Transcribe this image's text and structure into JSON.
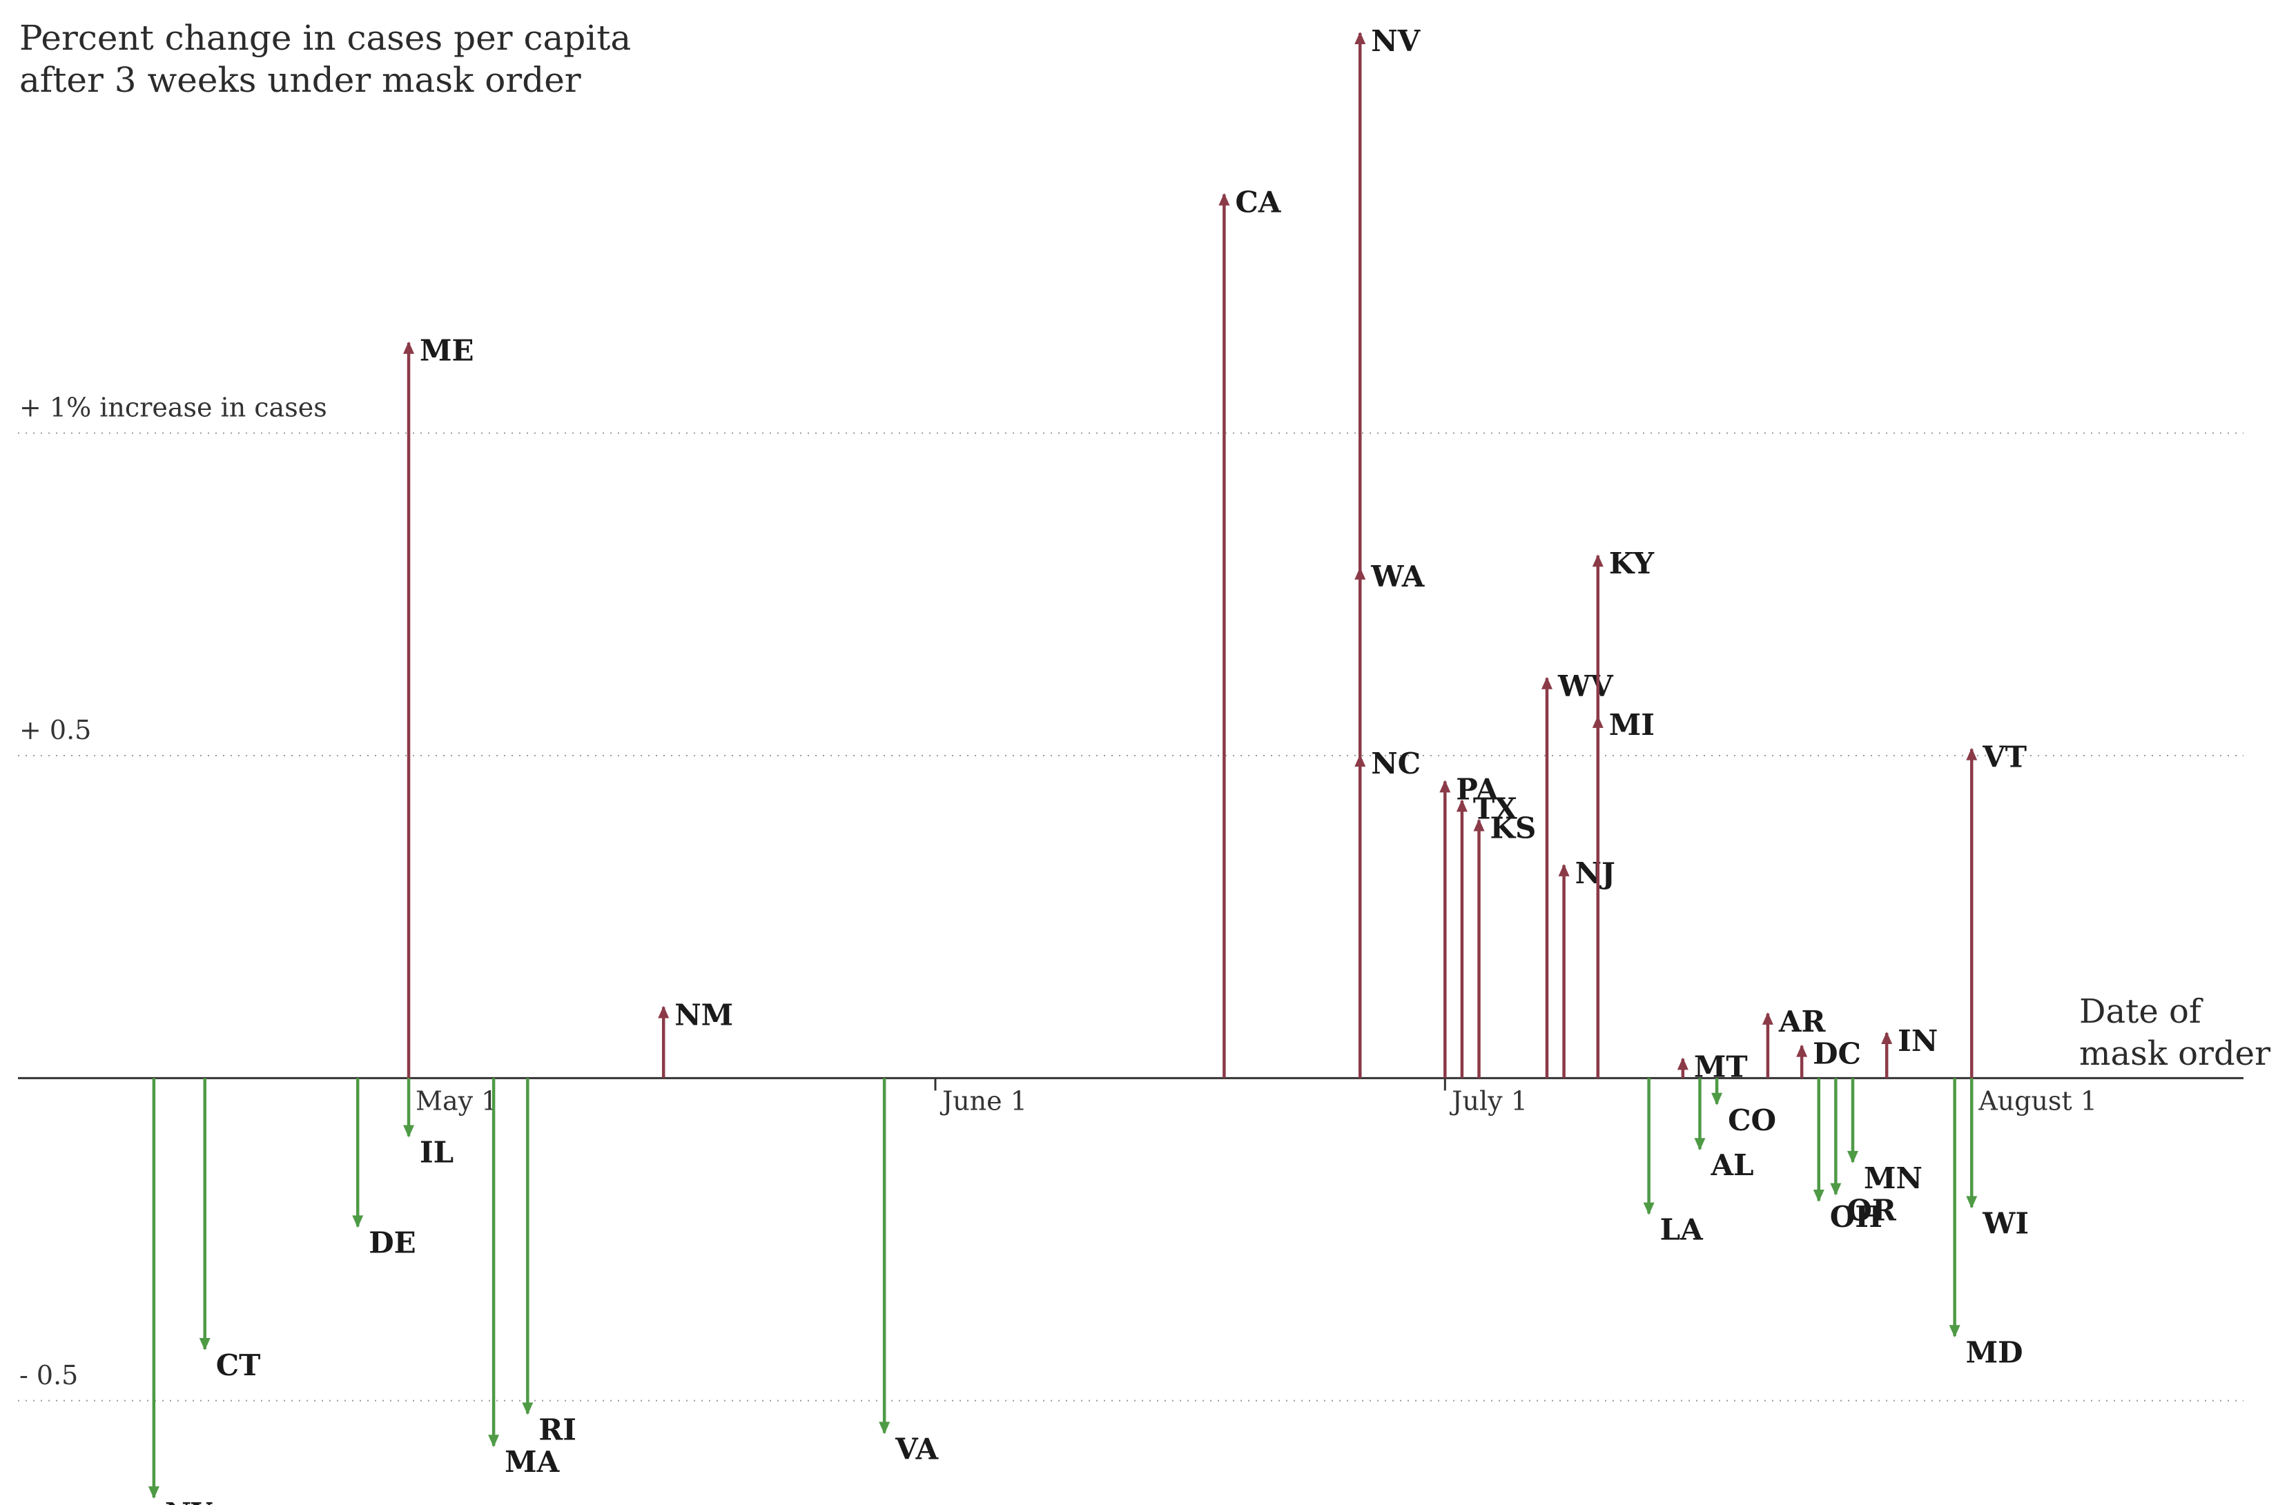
{
  "chart_data": {
    "type": "arrow",
    "title_lines": [
      "Percent change in cases per capita",
      "after 3 weeks under mask order"
    ],
    "xlabel_lines": [
      "Date of",
      "mask order"
    ],
    "x_ticks": [
      {
        "label": "May 1",
        "date": "2020-05-01"
      },
      {
        "label": "June 1",
        "date": "2020-06-01"
      },
      {
        "label": "July 1",
        "date": "2020-07-01"
      },
      {
        "label": "August 1",
        "date": "2020-08-01"
      }
    ],
    "xlim": [
      "2020-04-08",
      "2020-08-17"
    ],
    "ylim": [
      -0.65,
      1.62
    ],
    "y_gridlines": [
      {
        "value": 1,
        "label": "+ 1% increase in cases"
      },
      {
        "value": 0.5,
        "label": "+ 0.5"
      },
      {
        "value": -0.5,
        "label": "- 0.5"
      }
    ],
    "colors": {
      "increase": "#8b3a48",
      "decrease": "#4e9a45",
      "axis": "#333333",
      "grid": "#9a9a9a"
    },
    "points": [
      {
        "state": "NY",
        "date": "2020-04-16",
        "value": -0.65
      },
      {
        "state": "CT",
        "date": "2020-04-19",
        "value": -0.42
      },
      {
        "state": "DE",
        "date": "2020-04-28",
        "value": -0.23
      },
      {
        "state": "ME",
        "date": "2020-05-01",
        "value": 1.14
      },
      {
        "state": "IL",
        "date": "2020-05-01",
        "value": -0.09
      },
      {
        "state": "MA",
        "date": "2020-05-06",
        "value": -0.57
      },
      {
        "state": "RI",
        "date": "2020-05-08",
        "value": -0.52
      },
      {
        "state": "NM",
        "date": "2020-05-16",
        "value": 0.11
      },
      {
        "state": "VA",
        "date": "2020-05-29",
        "value": -0.55
      },
      {
        "state": "CA",
        "date": "2020-06-18",
        "value": 1.37
      },
      {
        "state": "NV",
        "date": "2020-06-26",
        "value": 1.62
      },
      {
        "state": "WA",
        "date": "2020-06-26",
        "value": 0.79
      },
      {
        "state": "NC",
        "date": "2020-06-26",
        "value": 0.5
      },
      {
        "state": "PA",
        "date": "2020-07-01",
        "value": 0.46
      },
      {
        "state": "TX",
        "date": "2020-07-02",
        "value": 0.43
      },
      {
        "state": "KS",
        "date": "2020-07-03",
        "value": 0.4
      },
      {
        "state": "WV",
        "date": "2020-07-07",
        "value": 0.62
      },
      {
        "state": "NJ",
        "date": "2020-07-08",
        "value": 0.33
      },
      {
        "state": "KY",
        "date": "2020-07-10",
        "value": 0.81
      },
      {
        "state": "MI",
        "date": "2020-07-10",
        "value": 0.56
      },
      {
        "state": "LA",
        "date": "2020-07-13",
        "value": -0.21
      },
      {
        "state": "MT",
        "date": "2020-07-15",
        "value": 0.03
      },
      {
        "state": "AL",
        "date": "2020-07-16",
        "value": -0.11
      },
      {
        "state": "CO",
        "date": "2020-07-17",
        "value": -0.04
      },
      {
        "state": "AR",
        "date": "2020-07-20",
        "value": 0.1
      },
      {
        "state": "DC",
        "date": "2020-07-22",
        "value": 0.05
      },
      {
        "state": "OH",
        "date": "2020-07-23",
        "value": -0.19
      },
      {
        "state": "OR",
        "date": "2020-07-24",
        "value": -0.18
      },
      {
        "state": "MN",
        "date": "2020-07-25",
        "value": -0.13
      },
      {
        "state": "IN",
        "date": "2020-07-27",
        "value": 0.07
      },
      {
        "state": "MD",
        "date": "2020-07-31",
        "value": -0.4
      },
      {
        "state": "VT",
        "date": "2020-08-01",
        "value": 0.51
      },
      {
        "state": "WI",
        "date": "2020-08-01",
        "value": -0.2
      }
    ]
  }
}
